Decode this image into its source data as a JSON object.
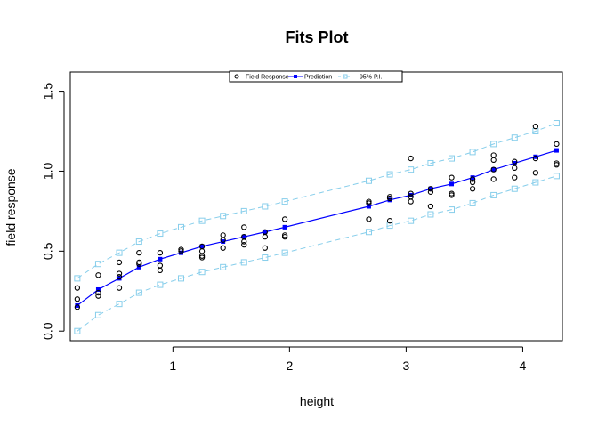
{
  "chart_data": {
    "type": "scatter",
    "title": "Fits Plot",
    "xlabel": "height",
    "ylabel": "field response",
    "xlim": [
      0.12,
      4.34
    ],
    "ylim": [
      -0.06,
      1.62
    ],
    "xticks": [
      1,
      2,
      3,
      4
    ],
    "yticks": [
      0.0,
      0.5,
      1.0,
      1.5
    ],
    "xtick_labels": [
      "1",
      "2",
      "3",
      "4"
    ],
    "ytick_labels": [
      "0.0",
      "0.5",
      "1.0",
      "1.5"
    ],
    "legend": {
      "position": "top-center",
      "entries": [
        "Field Response",
        "Prediction",
        "95% P.I."
      ]
    },
    "colors": {
      "observed": "#000000",
      "prediction": "#0000FF",
      "interval": "#87CEEB"
    },
    "observed": {
      "name": "Field Response",
      "points": [
        [
          0.18,
          0.27
        ],
        [
          0.18,
          0.2
        ],
        [
          0.18,
          0.15
        ],
        [
          0.36,
          0.35
        ],
        [
          0.36,
          0.24
        ],
        [
          0.36,
          0.22
        ],
        [
          0.54,
          0.43
        ],
        [
          0.54,
          0.36
        ],
        [
          0.54,
          0.34
        ],
        [
          0.54,
          0.27
        ],
        [
          0.71,
          0.49
        ],
        [
          0.71,
          0.43
        ],
        [
          0.71,
          0.42
        ],
        [
          0.89,
          0.49
        ],
        [
          0.89,
          0.41
        ],
        [
          0.89,
          0.38
        ],
        [
          1.07,
          0.51
        ],
        [
          1.07,
          0.5
        ],
        [
          1.25,
          0.53
        ],
        [
          1.25,
          0.5
        ],
        [
          1.25,
          0.47
        ],
        [
          1.25,
          0.46
        ],
        [
          1.43,
          0.6
        ],
        [
          1.43,
          0.57
        ],
        [
          1.43,
          0.52
        ],
        [
          1.61,
          0.65
        ],
        [
          1.61,
          0.59
        ],
        [
          1.61,
          0.56
        ],
        [
          1.61,
          0.54
        ],
        [
          1.79,
          0.62
        ],
        [
          1.79,
          0.59
        ],
        [
          1.79,
          0.52
        ],
        [
          1.96,
          0.7
        ],
        [
          1.96,
          0.6
        ],
        [
          1.96,
          0.59
        ],
        [
          2.68,
          0.81
        ],
        [
          2.68,
          0.8
        ],
        [
          2.68,
          0.7
        ],
        [
          2.86,
          0.84
        ],
        [
          2.86,
          0.83
        ],
        [
          2.86,
          0.69
        ],
        [
          3.04,
          1.08
        ],
        [
          3.04,
          0.86
        ],
        [
          3.04,
          0.84
        ],
        [
          3.04,
          0.81
        ],
        [
          3.21,
          0.89
        ],
        [
          3.21,
          0.87
        ],
        [
          3.21,
          0.78
        ],
        [
          3.39,
          0.96
        ],
        [
          3.39,
          0.86
        ],
        [
          3.39,
          0.85
        ],
        [
          3.57,
          0.95
        ],
        [
          3.57,
          0.93
        ],
        [
          3.57,
          0.89
        ],
        [
          3.75,
          1.1
        ],
        [
          3.75,
          1.07
        ],
        [
          3.75,
          1.01
        ],
        [
          3.75,
          0.95
        ],
        [
          3.93,
          1.06
        ],
        [
          3.93,
          1.02
        ],
        [
          3.93,
          0.96
        ],
        [
          4.11,
          1.28
        ],
        [
          4.11,
          1.08
        ],
        [
          4.11,
          0.99
        ],
        [
          4.29,
          1.17
        ],
        [
          4.29,
          1.05
        ],
        [
          4.29,
          1.04
        ]
      ]
    },
    "prediction": {
      "name": "Prediction",
      "x": [
        0.18,
        0.36,
        0.54,
        0.71,
        0.89,
        1.07,
        1.25,
        1.43,
        1.61,
        1.79,
        1.96,
        2.68,
        2.86,
        3.04,
        3.21,
        3.39,
        3.57,
        3.75,
        3.93,
        4.11,
        4.29
      ],
      "y": [
        0.16,
        0.26,
        0.33,
        0.4,
        0.45,
        0.49,
        0.53,
        0.56,
        0.59,
        0.62,
        0.65,
        0.78,
        0.82,
        0.85,
        0.89,
        0.92,
        0.96,
        1.01,
        1.05,
        1.09,
        1.13
      ]
    },
    "interval": {
      "name": "95% P.I.",
      "x": [
        0.18,
        0.36,
        0.54,
        0.71,
        0.89,
        1.07,
        1.25,
        1.43,
        1.61,
        1.79,
        1.96,
        2.68,
        2.86,
        3.04,
        3.21,
        3.39,
        3.57,
        3.75,
        3.93,
        4.11,
        4.29
      ],
      "upper": [
        0.33,
        0.42,
        0.49,
        0.56,
        0.61,
        0.65,
        0.69,
        0.72,
        0.75,
        0.78,
        0.81,
        0.94,
        0.98,
        1.01,
        1.05,
        1.08,
        1.12,
        1.17,
        1.21,
        1.25,
        1.3
      ],
      "lower": [
        0.0,
        0.1,
        0.17,
        0.24,
        0.29,
        0.33,
        0.37,
        0.4,
        0.43,
        0.46,
        0.49,
        0.62,
        0.66,
        0.69,
        0.73,
        0.76,
        0.8,
        0.85,
        0.89,
        0.93,
        0.97
      ]
    }
  }
}
